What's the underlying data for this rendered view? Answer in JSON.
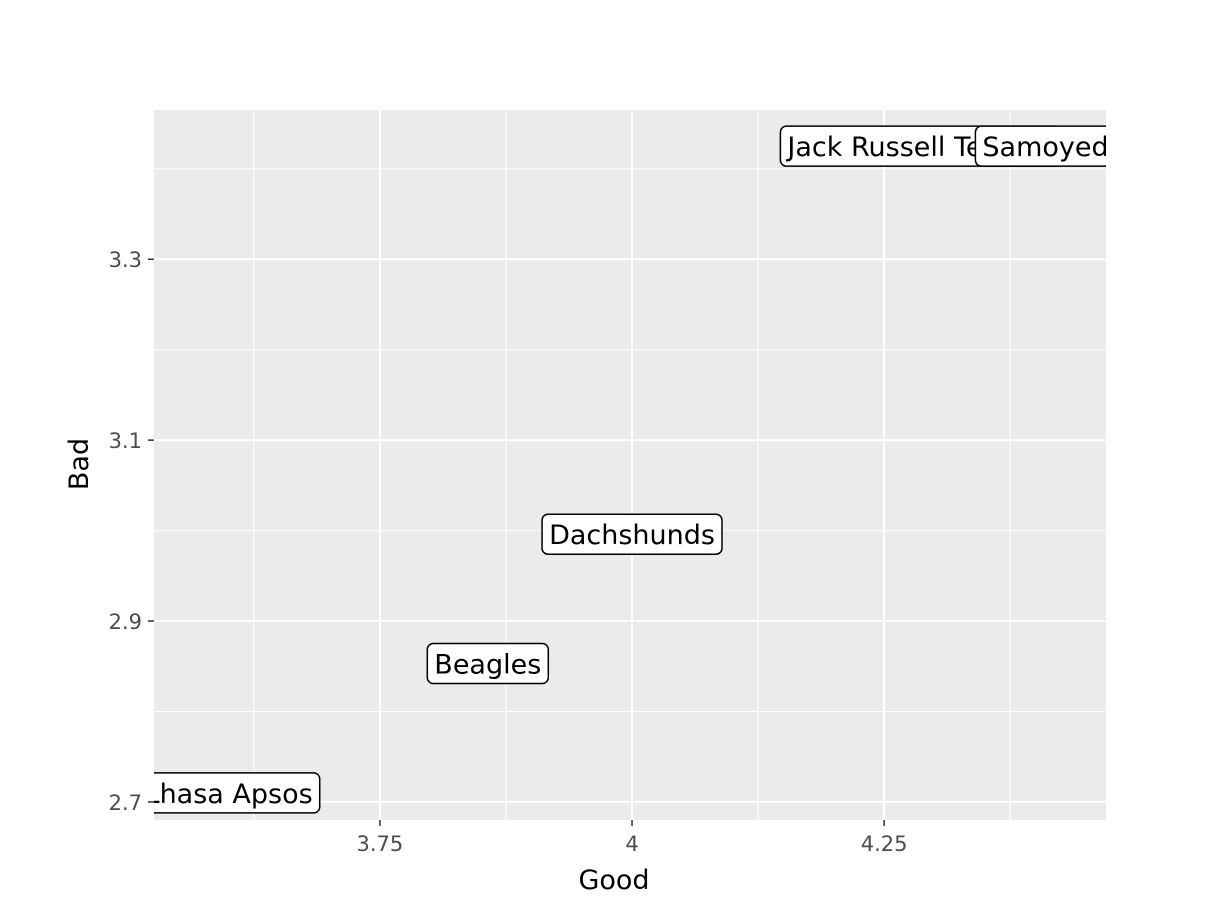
{
  "chart_data": {
    "type": "scatter",
    "title": "",
    "xlabel": "Good",
    "ylabel": "Bad",
    "xlim": [
      3.526,
      4.47
    ],
    "ylim": [
      2.68,
      3.465
    ],
    "xticks": [
      3.75,
      4,
      4.25
    ],
    "xtick_labels": [
      "3.75",
      "4",
      "4.25"
    ],
    "yticks": [
      2.7,
      2.9,
      3.1,
      3.3
    ],
    "ytick_labels": [
      "2.7",
      "2.9",
      "3.1",
      "3.3"
    ],
    "x_minor": [
      3.625,
      3.875,
      4.125,
      4.375
    ],
    "y_minor": [
      2.8,
      3.0,
      3.2,
      3.4
    ],
    "grid": true,
    "legend": "none",
    "colors": {
      "panel": "#ebebeb",
      "grid": "#ffffff",
      "tick_text": "#4d4d4d",
      "label_box": "#ffffff",
      "label_border": "#000000"
    },
    "points": [
      {
        "label": "Lhasa Apsos",
        "x": 3.6,
        "y": 2.71
      },
      {
        "label": "Beagles",
        "x": 3.857,
        "y": 2.853
      },
      {
        "label": "Dachshunds",
        "x": 4.0,
        "y": 2.996
      },
      {
        "label": "Jack Russell Terriers",
        "x": 4.286,
        "y": 3.425
      },
      {
        "label": "Samoyeds",
        "x": 4.417,
        "y": 3.425
      }
    ]
  }
}
